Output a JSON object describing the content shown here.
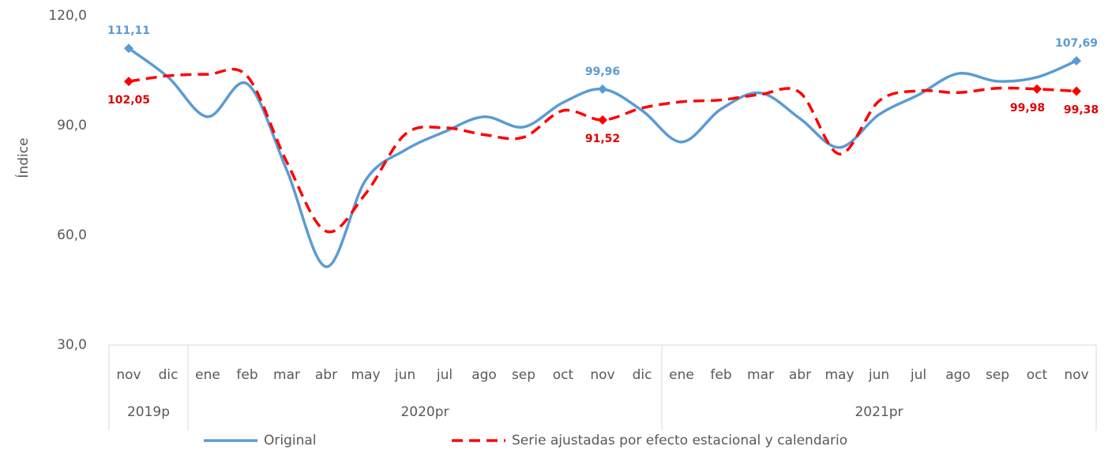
{
  "chart_data": {
    "type": "line",
    "y_label": "Índice",
    "categories": [
      "nov",
      "dic",
      "ene",
      "feb",
      "mar",
      "abr",
      "may",
      "jun",
      "jul",
      "ago",
      "sep",
      "oct",
      "nov",
      "dic",
      "ene",
      "feb",
      "mar",
      "abr",
      "may",
      "jun",
      "jul",
      "ago",
      "sep",
      "oct",
      "nov"
    ],
    "groups": [
      {
        "label": "2019p",
        "start": 0,
        "end": 1
      },
      {
        "label": "2020pr",
        "start": 2,
        "end": 13
      },
      {
        "label": "2021pr",
        "start": 14,
        "end": 24
      }
    ],
    "ylim": [
      30,
      120
    ],
    "yticks": [
      {
        "value": 30,
        "label": "30,0"
      },
      {
        "value": 60,
        "label": "60,0"
      },
      {
        "value": 90,
        "label": "90,0"
      },
      {
        "value": 120,
        "label": "120,0"
      }
    ],
    "series": [
      {
        "name": "Original",
        "color": "#5b9bd5",
        "dash": false,
        "values": [
          111.11,
          103.2,
          92.4,
          101.4,
          77.9,
          51.4,
          75.1,
          83.3,
          88.3,
          92.4,
          89.6,
          96.3,
          99.96,
          94.1,
          85.5,
          94.5,
          98.9,
          91.9,
          84,
          93,
          98.4,
          104.2,
          102.1,
          103.2,
          107.69
        ],
        "value_labels": [
          "111,11",
          null,
          null,
          null,
          null,
          null,
          null,
          null,
          null,
          null,
          null,
          null,
          "99,96",
          null,
          null,
          null,
          null,
          null,
          null,
          null,
          null,
          null,
          null,
          null,
          "107,69"
        ]
      },
      {
        "name": "Serie ajustadas por efecto estacional y calendario",
        "color": "#ff0000",
        "dash": true,
        "values": [
          102.05,
          103.6,
          104,
          103.5,
          80.1,
          61.1,
          71.4,
          87.6,
          89.4,
          87.5,
          86.8,
          94.1,
          91.52,
          94.8,
          96.5,
          97,
          98.5,
          99,
          82.2,
          96.7,
          99.5,
          99,
          100.2,
          99.98,
          99.38
        ],
        "value_labels": [
          "102,05",
          null,
          null,
          null,
          null,
          null,
          null,
          null,
          null,
          null,
          null,
          null,
          "91,52",
          null,
          null,
          null,
          null,
          null,
          null,
          null,
          null,
          null,
          null,
          "99,98",
          "99,38"
        ]
      }
    ]
  }
}
